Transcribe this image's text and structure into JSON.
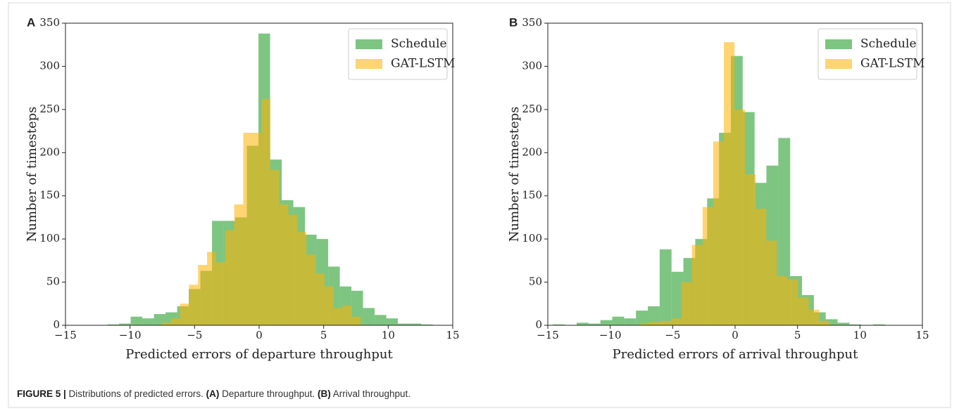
{
  "chart_data": [
    {
      "type": "histogram",
      "panel_label": "A",
      "xlabel": "Predicted errors of departure throughput",
      "ylabel": "Number of timesteps",
      "xlim": [
        -15,
        15
      ],
      "ylim": [
        0,
        350
      ],
      "xticks": [
        {
          "value": -15,
          "label": "−15"
        },
        {
          "value": -10,
          "label": "−10"
        },
        {
          "value": -5,
          "label": "−5"
        },
        0,
        5,
        10,
        15
      ],
      "yticks": [
        0,
        50,
        100,
        150,
        200,
        250,
        300,
        350
      ],
      "legend": "upper right",
      "series": [
        {
          "name": "Schedule",
          "color": "#4caf50",
          "bins": [
            -11.75,
            -10.85,
            -9.95,
            -9.05,
            -8.15,
            -7.25,
            -6.35,
            -5.45,
            -4.55,
            -3.65,
            -2.75,
            -1.85,
            -0.95,
            -0.05,
            0.85,
            1.75,
            2.65,
            3.55,
            4.45,
            5.35,
            6.25,
            7.15,
            8.05,
            8.95,
            9.85,
            10.75,
            11.65,
            12.55,
            13.45
          ],
          "values": [
            1,
            2,
            10,
            8,
            13,
            15,
            22,
            42,
            63,
            121,
            121,
            125,
            208,
            338,
            192,
            145,
            137,
            105,
            100,
            68,
            45,
            40,
            20,
            12,
            8,
            2,
            2,
            1
          ]
        },
        {
          "name": "GAT-LSTM",
          "color": "#ffb000",
          "bins": [
            -7.53,
            -6.83,
            -6.13,
            -5.43,
            -4.73,
            -4.03,
            -3.33,
            -2.63,
            -1.93,
            -1.23,
            -0.53,
            0.17,
            0.87,
            1.57,
            2.27,
            2.97,
            3.67,
            4.37,
            5.07,
            5.77,
            6.47,
            7.17,
            7.87
          ],
          "values": [
            3,
            8,
            25,
            47,
            70,
            85,
            73,
            110,
            140,
            223,
            223,
            262,
            180,
            140,
            128,
            108,
            82,
            60,
            45,
            20,
            23,
            10
          ]
        }
      ]
    },
    {
      "type": "histogram",
      "panel_label": "B",
      "xlabel": "Predicted errors of arrival throughput",
      "ylabel": "Number of timesteps",
      "xlim": [
        -15,
        15
      ],
      "ylim": [
        0,
        350
      ],
      "xticks": [
        {
          "value": -15,
          "label": "−15"
        },
        {
          "value": -10,
          "label": "−10"
        },
        {
          "value": -5,
          "label": "−5"
        },
        0,
        5,
        10,
        15
      ],
      "yticks": [
        0,
        50,
        100,
        150,
        200,
        250,
        300,
        350
      ],
      "legend": "upper right",
      "series": [
        {
          "name": "Schedule",
          "color": "#4caf50",
          "bins": [
            -14.59,
            -13.64,
            -12.69,
            -11.74,
            -10.79,
            -9.84,
            -8.89,
            -7.94,
            -6.99,
            -6.04,
            -5.09,
            -4.14,
            -3.19,
            -2.24,
            -1.29,
            -0.34,
            0.61,
            1.56,
            2.51,
            3.46,
            4.41,
            5.36,
            6.31,
            7.26,
            8.21,
            9.16,
            10.11,
            11.06,
            12.01,
            12.96
          ],
          "values": [
            1,
            0,
            3,
            2,
            6,
            10,
            8,
            17,
            22,
            88,
            62,
            78,
            100,
            147,
            223,
            312,
            247,
            165,
            185,
            217,
            57,
            35,
            15,
            7,
            3,
            1,
            0,
            1,
            0
          ]
        },
        {
          "name": "GAT-LSTM",
          "color": "#ffb000",
          "bins": [
            -7.7,
            -6.85,
            -6.0,
            -5.15,
            -4.3,
            -3.45,
            -2.6,
            -1.75,
            -0.9,
            -0.05,
            0.8,
            1.65,
            2.5,
            3.35,
            4.2,
            5.05,
            5.9,
            6.75,
            7.6
          ],
          "values": [
            2,
            4,
            5,
            8,
            50,
            93,
            137,
            213,
            328,
            250,
            175,
            135,
            98,
            57,
            53,
            32,
            18,
            5
          ]
        }
      ]
    }
  ],
  "caption": [
    {
      "text": "FIGURE 5 |",
      "bold": true
    },
    {
      "text": " Distributions of predicted errors. ",
      "bold": false
    },
    {
      "text": "(A)",
      "bold": true
    },
    {
      "text": " Departure throughput. ",
      "bold": false
    },
    {
      "text": "(B)",
      "bold": true
    },
    {
      "text": " Arrival throughput.",
      "bold": false
    }
  ]
}
